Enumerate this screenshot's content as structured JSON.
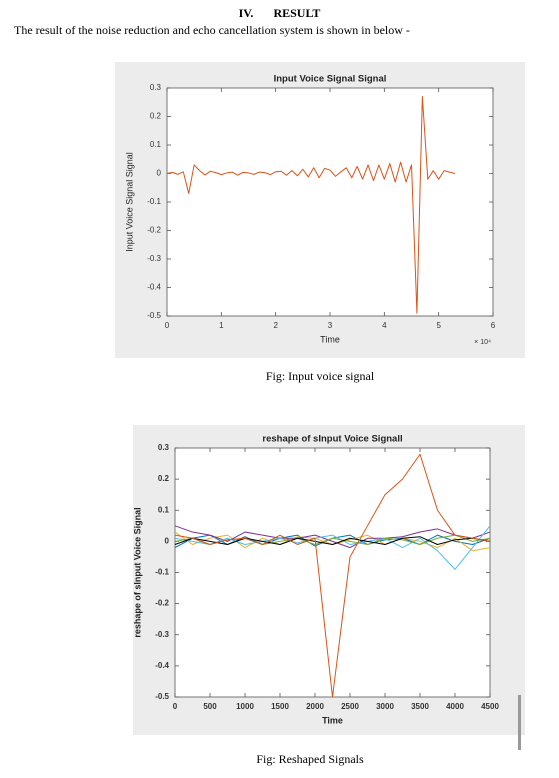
{
  "heading": {
    "number": "IV.",
    "title": "RESULT"
  },
  "intro": "The result of the noise reduction and echo cancellation system is shown in below -",
  "captions": [
    "Fig: Input voice signal",
    "Fig: Reshaped Signals"
  ],
  "chart_data": [
    {
      "type": "line",
      "title": "Input Voice Signal Signal",
      "x_label": "Time",
      "y_label": "Input Voice Signal Signal",
      "x_multiplier": "× 10⁴",
      "x": [
        0,
        1000,
        2000,
        3000,
        4000,
        5000,
        6000,
        7000,
        8000,
        9000,
        10000,
        11000,
        12000,
        13000,
        14000,
        15000,
        16000,
        17000,
        18000,
        19000,
        20000,
        21000,
        22000,
        23000,
        24000,
        25000,
        26000,
        27000,
        28000,
        29000,
        30000,
        31000,
        32000,
        33000,
        34000,
        35000,
        36000,
        37000,
        38000,
        39000,
        40000,
        41000,
        42000,
        43000,
        44000,
        45000,
        46000,
        47000,
        48000,
        49000,
        50000,
        51000,
        52000,
        53000
      ],
      "series": [
        {
          "color": "#d95319",
          "values": [
            0,
            0.004,
            -0.003,
            0.006,
            -0.07,
            0.03,
            0.01,
            -0.005,
            0.008,
            0.003,
            -0.004,
            0.002,
            0.005,
            -0.006,
            0.004,
            0.002,
            -0.003,
            0.005,
            0.003,
            -0.004,
            0.006,
            0.008,
            -0.006,
            0.01,
            -0.008,
            0.015,
            -0.012,
            0.02,
            -0.015,
            0.018,
            0.012,
            -0.01,
            0.006,
            0.02,
            -0.015,
            0.025,
            -0.02,
            0.03,
            -0.025,
            0.03,
            -0.02,
            0.035,
            -0.03,
            0.04,
            -0.03,
            0.03,
            -0.49,
            0.27,
            -0.02,
            0.01,
            -0.02,
            0.01,
            0.005,
            0
          ]
        }
      ],
      "xlim": [
        0,
        60000
      ],
      "xticks": [
        0,
        {
          "value": 10000,
          "label": "1"
        },
        {
          "value": 20000,
          "label": "2"
        },
        {
          "value": 30000,
          "label": "3"
        },
        {
          "value": 40000,
          "label": "4"
        },
        {
          "value": 50000,
          "label": "5"
        },
        {
          "value": 60000,
          "label": "6"
        }
      ],
      "ylim": [
        -0.5,
        0.3
      ],
      "yticks": [
        -0.5,
        -0.4,
        -0.3,
        -0.2,
        -0.1,
        0,
        0.1,
        0.2,
        0.3
      ]
    },
    {
      "type": "line",
      "title": "reshape of sInput Voice Signall",
      "x_label": "Time",
      "y_label": "reshape of sInput Voice Signal",
      "x": [
        0,
        250,
        500,
        750,
        1000,
        1250,
        1500,
        1750,
        2000,
        2250,
        2500,
        2750,
        3000,
        3250,
        3500,
        3750,
        4000,
        4250,
        4500
      ],
      "series": [
        {
          "color": "#0072bd",
          "values": [
            -0.02,
            0.01,
            0.02,
            -0.01,
            0.015,
            -0.01,
            0.01,
            0.02,
            -0.015,
            0.01,
            0.02,
            -0.01,
            0.005,
            0.01,
            -0.01,
            0.02,
            0,
            -0.01,
            0.01
          ]
        },
        {
          "color": "#edb120",
          "values": [
            0.03,
            -0.01,
            0.01,
            0.02,
            -0.02,
            0.01,
            -0.01,
            0.015,
            0.01,
            -0.01,
            0.005,
            0.02,
            -0.01,
            0.01,
            0,
            -0.02,
            0.01,
            -0.03,
            -0.02
          ]
        },
        {
          "color": "#7e2f8e",
          "values": [
            0.05,
            0.03,
            0.02,
            0,
            0.03,
            0.02,
            0.01,
            0.01,
            0.02,
            0,
            -0.02,
            0.01,
            0.01,
            0.015,
            0.03,
            0.04,
            0.02,
            0.01,
            0.03
          ]
        },
        {
          "color": "#4dbeee",
          "values": [
            0.01,
            0,
            -0.01,
            0.01,
            -0.01,
            0,
            0.01,
            -0.005,
            0.01,
            0.02,
            -0.01,
            0,
            0.01,
            -0.02,
            0.01,
            -0.03,
            -0.09,
            -0.02,
            0.05
          ]
        },
        {
          "color": "#77ac30",
          "values": [
            0,
            0.01,
            -0.01,
            0.005,
            0.01,
            -0.01,
            0,
            0.01,
            -0.01,
            0.01,
            0,
            -0.01,
            0.01,
            0.005,
            -0.01,
            0.01,
            0.02,
            0,
            0.01
          ]
        },
        {
          "color": "#000000",
          "values": [
            -0.01,
            0.01,
            0,
            -0.01,
            0.01,
            0,
            -0.01,
            0.01,
            0,
            -0.01,
            0.01,
            0,
            -0.01,
            0.01,
            0.015,
            -0.01,
            0.005,
            0.01,
            0
          ]
        },
        {
          "color": "#d95319",
          "values": [
            0.02,
            0.01,
            -0.01,
            0.005,
            0.01,
            -0.01,
            0.02,
            -0.01,
            0.01,
            -0.5,
            -0.05,
            0.05,
            0.15,
            0.2,
            0.28,
            0.1,
            0.02,
            0.01,
            0
          ]
        }
      ],
      "xlim": [
        0,
        4500
      ],
      "xticks": [
        0,
        500,
        1000,
        1500,
        2000,
        2500,
        3000,
        3500,
        4000,
        4500
      ],
      "ylim": [
        -0.5,
        0.3
      ],
      "yticks": [
        -0.5,
        -0.4,
        -0.3,
        -0.2,
        -0.1,
        0,
        0.1,
        0.2,
        0.3
      ]
    }
  ]
}
